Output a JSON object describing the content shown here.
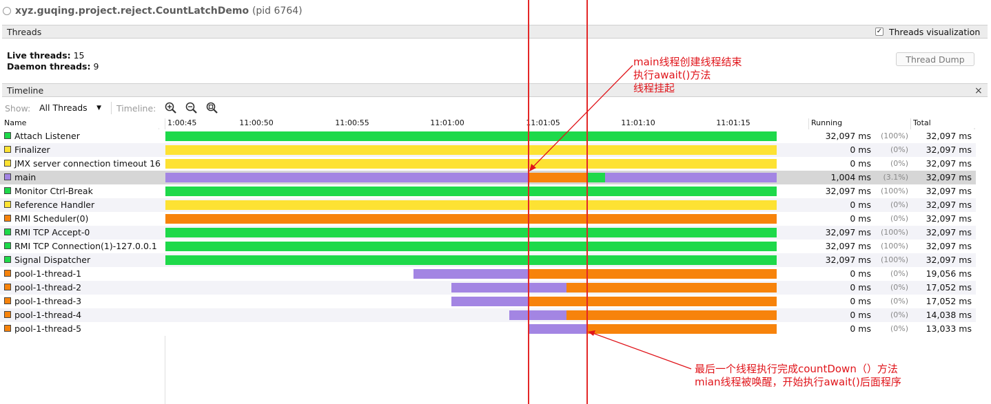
{
  "title": {
    "app": "xyz.guqing.project.reject.CountLatchDemo",
    "pid": "(pid 6764)"
  },
  "threads_section": {
    "label": "Threads",
    "visualization_label": "Threads visualization",
    "visualization_checked": true
  },
  "stats": {
    "live_label": "Live threads:",
    "live_value": "15",
    "daemon_label": "Daemon threads:",
    "daemon_value": "9"
  },
  "thread_dump_button": "Thread Dump",
  "timeline_section": {
    "label": "Timeline",
    "close": "×"
  },
  "toolbar": {
    "show_label": "Show:",
    "show_value": "All Threads",
    "timeline_label": "Timeline:",
    "zoom_in": "zoom-in-icon",
    "zoom_out": "zoom-out-icon",
    "zoom_fit": "zoom-fit-icon"
  },
  "columns": {
    "name": "Name",
    "running": "Running",
    "total": "Total"
  },
  "time_ticks": [
    "1:00:45",
    "11:00:50",
    "11:00:55",
    "11:01:00",
    "11:01:05",
    "11:01:10",
    "11:01:15"
  ],
  "colors": {
    "running": "#1ed94a",
    "waiting": "#fde233",
    "park": "#f7830b",
    "sleep": "#a385e3",
    "annotation": "#e0141a"
  },
  "threads": [
    {
      "name": "Attach Listener",
      "state": "running",
      "running": "32,097 ms",
      "pct": "(100%)",
      "total": "32,097 ms"
    },
    {
      "name": "Finalizer",
      "state": "waiting",
      "running": "0 ms",
      "pct": "(0%)",
      "total": "32,097 ms"
    },
    {
      "name": "JMX server connection timeout 16",
      "state": "waiting",
      "running": "0 ms",
      "pct": "(0%)",
      "total": "32,097 ms"
    },
    {
      "name": "main",
      "state": "sleep",
      "running": "1,004 ms",
      "pct": "(3.1%)",
      "total": "32,097 ms",
      "selected": true
    },
    {
      "name": "Monitor Ctrl-Break",
      "state": "running",
      "running": "32,097 ms",
      "pct": "(100%)",
      "total": "32,097 ms"
    },
    {
      "name": "Reference Handler",
      "state": "waiting",
      "running": "0 ms",
      "pct": "(0%)",
      "total": "32,097 ms"
    },
    {
      "name": "RMI Scheduler(0)",
      "state": "park",
      "running": "0 ms",
      "pct": "(0%)",
      "total": "32,097 ms"
    },
    {
      "name": "RMI TCP Accept-0",
      "state": "running",
      "running": "32,097 ms",
      "pct": "(100%)",
      "total": "32,097 ms"
    },
    {
      "name": "RMI TCP Connection(1)-127.0.0.1",
      "state": "running",
      "running": "32,097 ms",
      "pct": "(100%)",
      "total": "32,097 ms"
    },
    {
      "name": "Signal Dispatcher",
      "state": "running",
      "running": "32,097 ms",
      "pct": "(100%)",
      "total": "32,097 ms"
    },
    {
      "name": "pool-1-thread-1",
      "state": "park",
      "running": "0 ms",
      "pct": "(0%)",
      "total": "19,056 ms"
    },
    {
      "name": "pool-1-thread-2",
      "state": "park",
      "running": "0 ms",
      "pct": "(0%)",
      "total": "17,052 ms"
    },
    {
      "name": "pool-1-thread-3",
      "state": "park",
      "running": "0 ms",
      "pct": "(0%)",
      "total": "17,052 ms"
    },
    {
      "name": "pool-1-thread-4",
      "state": "park",
      "running": "0 ms",
      "pct": "(0%)",
      "total": "14,038 ms"
    },
    {
      "name": "pool-1-thread-5",
      "state": "park",
      "running": "0 ms",
      "pct": "(0%)",
      "total": "13,033 ms"
    }
  ],
  "annotations": {
    "top": [
      "main线程创建线程结束",
      "执行await()方法",
      "线程挂起"
    ],
    "bottom": [
      "最后一个线程执行完成countDown（）方法",
      "mian线程被唤醒，开始执行await()后面程序"
    ]
  }
}
